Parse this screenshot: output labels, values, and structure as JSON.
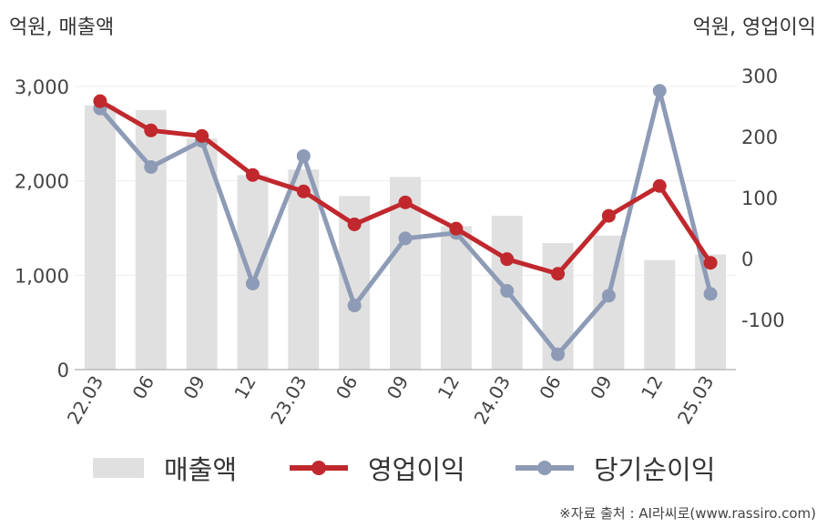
{
  "units": {
    "left": "억원, 매출액",
    "right": "억원, 영업이익"
  },
  "colors": {
    "revenue": "#e0e0e0",
    "operating_profit": "#c0282d",
    "net_income": "#8e9bb6"
  },
  "chart_data": {
    "type": "bar",
    "categories": [
      "22.03",
      "06",
      "09",
      "12",
      "23.03",
      "06",
      "09",
      "12",
      "24.03",
      "06",
      "09",
      "12",
      "25.03"
    ],
    "y_left": {
      "range": [
        0,
        3000
      ],
      "ticks": [
        "0",
        "1,000",
        "2,000",
        "3,000"
      ],
      "tick_values": [
        0,
        1000,
        2000,
        3000
      ]
    },
    "y_right": {
      "range": [
        -183,
        300
      ],
      "ticks": [
        "-100",
        "0",
        "100",
        "200",
        "300"
      ],
      "tick_values": [
        -100,
        0,
        100,
        200,
        300
      ]
    },
    "grid": true,
    "legend_position": "bottom",
    "series": [
      {
        "name": "매출액",
        "type": "bar",
        "axis": "left",
        "values": [
          2800,
          2750,
          2450,
          2060,
          2120,
          1840,
          2040,
          1520,
          1630,
          1340,
          1420,
          1160,
          1220
        ]
      },
      {
        "name": "영업이익",
        "type": "line",
        "axis": "right",
        "values": [
          258,
          210,
          201,
          137,
          110,
          56,
          92,
          49,
          -1,
          -25,
          70,
          119,
          -7
        ]
      },
      {
        "name": "당기순이익",
        "type": "line",
        "axis": "right",
        "values": [
          246,
          150,
          193,
          -41,
          168,
          -77,
          33,
          42,
          -53,
          -157,
          -61,
          275,
          -58
        ]
      }
    ]
  },
  "source": "※자료 출처 : AI라씨로(www.rassiro.com)"
}
